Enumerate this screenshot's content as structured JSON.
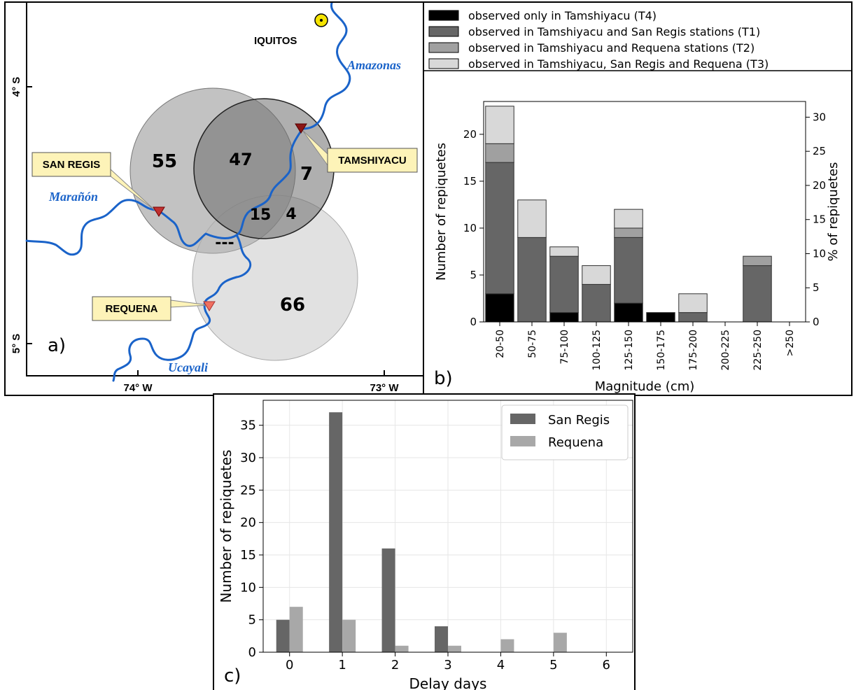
{
  "panel_a": {
    "label": "a)",
    "city": "IQUITOS",
    "rivers": {
      "amazonas": "Amazonas",
      "maranon": "Marañón",
      "ucayali": "Ucayali"
    },
    "stations": {
      "san_regis": "SAN REGIS",
      "tamshiyacu": "TAMSHIYACU",
      "requena": "REQUENA"
    },
    "counts": {
      "san_regis_only": "55",
      "san_regis_tamshiyacu": "47",
      "tamshiyacu_only": "7",
      "all_three": "15",
      "tamshiyacu_requena": "4",
      "san_regis_requena": "---",
      "requena_only": "66"
    },
    "lat_labels": [
      "4° S",
      "5° S"
    ],
    "lon_labels": [
      "74° W",
      "73° W"
    ],
    "colors": {
      "river": "#1a63c9",
      "label_box": "#fdf3b8",
      "station_tamshiyacu": "#8b1515",
      "station_san_regis": "#c03030",
      "station_requena": "#f07060",
      "city_marker": "#f5e400"
    }
  },
  "chart_data": [
    {
      "type": "bar",
      "stacked": true,
      "panel_label": "b)",
      "categories": [
        "20-50",
        "50-75",
        "75-100",
        "100-125",
        "125-150",
        "150-175",
        "175-200",
        "200-225",
        "225-250",
        ">250"
      ],
      "series": [
        {
          "name": "observed only in Tamshiyacu (T4)",
          "color": "#000000",
          "values": [
            3,
            0,
            1,
            0,
            2,
            1,
            0,
            0,
            0,
            0
          ]
        },
        {
          "name": "observed in Tamshiyacu and San Regis stations (T1)",
          "color": "#666666",
          "values": [
            14,
            9,
            6,
            4,
            7,
            0,
            1,
            0,
            6,
            0
          ]
        },
        {
          "name": "observed in Tamshiyacu and Requena stations (T2)",
          "color": "#a0a0a0",
          "values": [
            2,
            0,
            0,
            0,
            1,
            0,
            0,
            0,
            1,
            0
          ]
        },
        {
          "name": "observed in Tamshiyacu, San Regis and Requena (T3)",
          "color": "#d8d8d8",
          "values": [
            4,
            4,
            1,
            2,
            2,
            0,
            2,
            0,
            0,
            0
          ]
        }
      ],
      "xlabel": "Magnitude (cm)",
      "ylabel": "Number of repiquetes",
      "ylabel_right": "% of repiquetes",
      "ylim": [
        0,
        23.5
      ],
      "yticks": [
        0,
        5,
        10,
        15,
        20
      ],
      "right_yticks": [
        0,
        5,
        10,
        15,
        20,
        25,
        30
      ],
      "right_ylim": [
        0,
        32.3
      ],
      "grid": false,
      "legend_position": "above"
    },
    {
      "type": "bar",
      "panel_label": "c)",
      "categories": [
        "0",
        "1",
        "2",
        "3",
        "4",
        "5",
        "6"
      ],
      "series": [
        {
          "name": "San Regis",
          "color": "#666666",
          "values": [
            5,
            37,
            16,
            4,
            0,
            0,
            0
          ]
        },
        {
          "name": "Requena",
          "color": "#a8a8a8",
          "values": [
            7,
            5,
            1,
            1,
            2,
            3,
            0
          ]
        }
      ],
      "xlabel": "Delay days",
      "ylabel": "Number of repiquetes",
      "ylim": [
        0,
        38.85
      ],
      "yticks": [
        0,
        5,
        10,
        15,
        20,
        25,
        30,
        35
      ],
      "grid": true,
      "legend_position": "top-right"
    }
  ]
}
